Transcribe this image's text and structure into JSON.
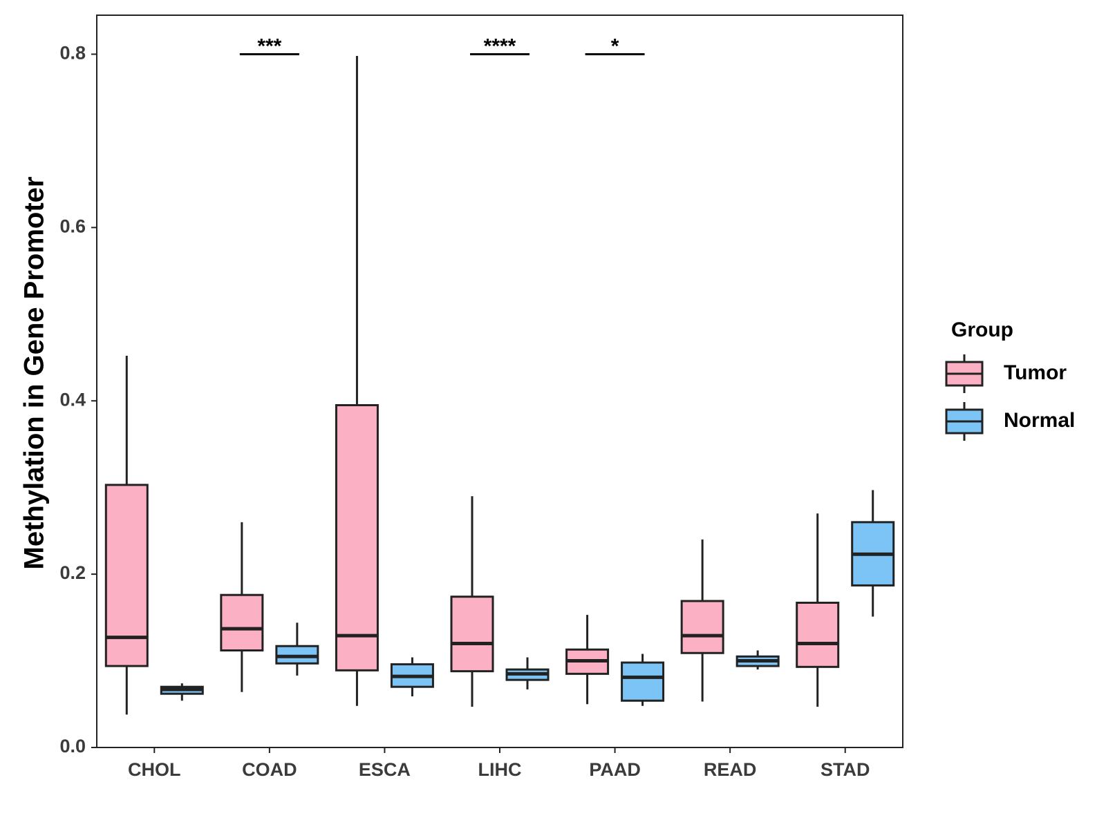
{
  "colors": {
    "tumor": "#fbb1c3",
    "normal": "#7cc4f6",
    "outline": "#222222",
    "panel_border": "#222222",
    "tick_text": "#3b3b3b"
  },
  "chart_data": {
    "type": "boxplot",
    "title": "",
    "xlabel": "",
    "ylabel": "Methylation in Gene Promoter",
    "ylim": [
      0.0,
      0.845
    ],
    "yticks": [
      0.0,
      0.2,
      0.4,
      0.6,
      0.8
    ],
    "ytick_labels": [
      "0.0",
      "0.2",
      "0.4",
      "0.6",
      "0.8"
    ],
    "categories": [
      "CHOL",
      "COAD",
      "ESCA",
      "LIHC",
      "PAAD",
      "READ",
      "STAD"
    ],
    "legend": {
      "title": "Group",
      "placement": "right",
      "entries": [
        "Tumor",
        "Normal"
      ]
    },
    "series": [
      {
        "name": "Tumor",
        "boxes": [
          {
            "category": "CHOL",
            "min": 0.038,
            "q1": 0.094,
            "median": 0.127,
            "q3": 0.303,
            "max": 0.452
          },
          {
            "category": "COAD",
            "min": 0.064,
            "q1": 0.112,
            "median": 0.137,
            "q3": 0.176,
            "max": 0.26
          },
          {
            "category": "ESCA",
            "min": 0.048,
            "q1": 0.089,
            "median": 0.129,
            "q3": 0.395,
            "max": 0.798
          },
          {
            "category": "LIHC",
            "min": 0.047,
            "q1": 0.088,
            "median": 0.12,
            "q3": 0.174,
            "max": 0.29
          },
          {
            "category": "PAAD",
            "min": 0.05,
            "q1": 0.085,
            "median": 0.1,
            "q3": 0.113,
            "max": 0.153
          },
          {
            "category": "READ",
            "min": 0.053,
            "q1": 0.109,
            "median": 0.129,
            "q3": 0.169,
            "max": 0.24
          },
          {
            "category": "STAD",
            "min": 0.047,
            "q1": 0.093,
            "median": 0.12,
            "q3": 0.167,
            "max": 0.27
          }
        ]
      },
      {
        "name": "Normal",
        "boxes": [
          {
            "category": "CHOL",
            "min": 0.054,
            "q1": 0.062,
            "median": 0.067,
            "q3": 0.07,
            "max": 0.074
          },
          {
            "category": "COAD",
            "min": 0.083,
            "q1": 0.097,
            "median": 0.105,
            "q3": 0.117,
            "max": 0.144
          },
          {
            "category": "ESCA",
            "min": 0.059,
            "q1": 0.07,
            "median": 0.082,
            "q3": 0.096,
            "max": 0.104
          },
          {
            "category": "LIHC",
            "min": 0.067,
            "q1": 0.078,
            "median": 0.085,
            "q3": 0.09,
            "max": 0.104
          },
          {
            "category": "PAAD",
            "min": 0.048,
            "q1": 0.054,
            "median": 0.081,
            "q3": 0.098,
            "max": 0.108
          },
          {
            "category": "READ",
            "min": 0.09,
            "q1": 0.094,
            "median": 0.1,
            "q3": 0.105,
            "max": 0.112
          },
          {
            "category": "STAD",
            "min": 0.151,
            "q1": 0.187,
            "median": 0.223,
            "q3": 0.26,
            "max": 0.297
          }
        ]
      }
    ],
    "significance": [
      {
        "category": "COAD",
        "label": "***",
        "y": 0.8
      },
      {
        "category": "LIHC",
        "label": "****",
        "y": 0.8
      },
      {
        "category": "PAAD",
        "label": "*",
        "y": 0.8
      }
    ]
  }
}
